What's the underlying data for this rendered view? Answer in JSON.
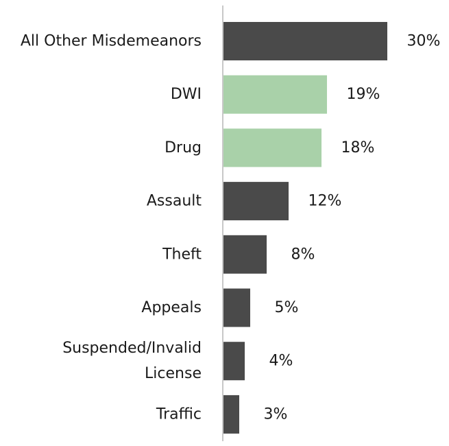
{
  "chart_data": {
    "type": "bar",
    "orientation": "horizontal",
    "categories": [
      "All Other Misdemeanors",
      "DWI",
      "Drug",
      "Assault",
      "Theft",
      "Appeals",
      "Suspended/Invalid License",
      "Traffic"
    ],
    "category_lines": [
      [
        "All Other Misdemeanors"
      ],
      [
        "DWI"
      ],
      [
        "Drug"
      ],
      [
        "Assault"
      ],
      [
        "Theft"
      ],
      [
        "Appeals"
      ],
      [
        "Suspended/Invalid",
        "License"
      ],
      [
        "Traffic"
      ]
    ],
    "values": [
      30,
      19,
      18,
      12,
      8,
      5,
      4,
      3
    ],
    "value_labels": [
      "30%",
      "19%",
      "18%",
      "12%",
      "8%",
      "5%",
      "4%",
      "3%"
    ],
    "highlighted": [
      false,
      true,
      true,
      false,
      false,
      false,
      false,
      false
    ],
    "title": "",
    "xlabel": "",
    "ylabel": "",
    "xlim": [
      0,
      30
    ],
    "grid": false,
    "legend": "none",
    "colors": {
      "default": "#4a4a4a",
      "highlight": "#a9d1a9",
      "axis": "#c8c8c8"
    }
  }
}
